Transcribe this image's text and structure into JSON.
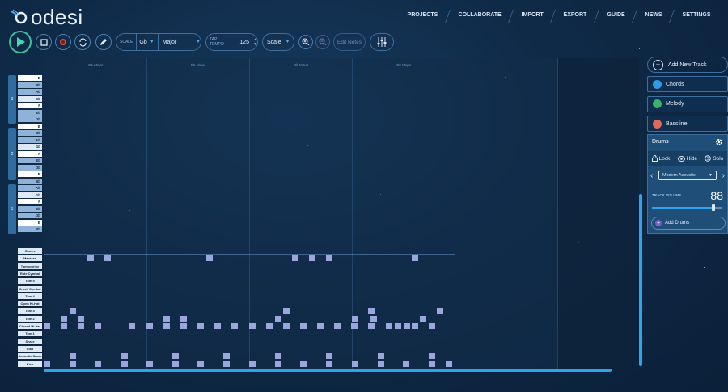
{
  "app": {
    "name": "odesi"
  },
  "nav": [
    "PROJECTS",
    "COLLABORATE",
    "IMPORT",
    "EXPORT",
    "GUIDE",
    "NEWS",
    "SETTINGS"
  ],
  "toolbar": {
    "scale_label": "SCALE",
    "key": "Gb",
    "mode": "Major",
    "tap_tempo_label": "TAP TEMPO",
    "tempo": "125",
    "scale_button": "Scale",
    "edit_notes": "Edit Notes"
  },
  "chords": [
    "Gb Major",
    "Bb Minor",
    "Db Minor",
    "Gb Major"
  ],
  "piano_octaves": [
    {
      "number": "3",
      "keys": [
        "B",
        "Bb",
        "Ab",
        "Gb",
        "F",
        "Eb",
        "Db",
        "B"
      ]
    },
    {
      "number": "2",
      "keys": [
        "Bb",
        "Ab",
        "Gb",
        "F",
        "Eb",
        "Db",
        "B"
      ]
    },
    {
      "number": "1",
      "keys": [
        "Bb",
        "Ab",
        "Gb",
        "F",
        "Eb",
        "Db",
        "B",
        "Bb"
      ]
    }
  ],
  "drum_kit": [
    "Claves",
    "Maracas",
    "Tambourine",
    "Ride Cymbal",
    "Tom 5",
    "Crash Cymbal",
    "Tom 4",
    "Open Hi-Hat",
    "Tom 3",
    "Tom 2",
    "Closed Hi-Hat",
    "Tom 1",
    "Snare",
    "Clap",
    "Acoustic Snare",
    "Kick"
  ],
  "tracks": {
    "add_label": "Add New Track",
    "items": [
      {
        "name": "Chords",
        "color": "#2d9be8"
      },
      {
        "name": "Melody",
        "color": "#3ab06a"
      },
      {
        "name": "Bassline",
        "color": "#e06a5a"
      }
    ]
  },
  "drums_panel": {
    "title": "Drums",
    "lock": "Lock",
    "hide": "Hide",
    "solo": "Solo",
    "kit": "Modern Acoustic",
    "volume_label": "TRACK VOLUME",
    "volume": "88",
    "add_drums": "Add Drums"
  },
  "colors": {
    "accent": "#2fa3ee",
    "note": "#9aa6dc",
    "panel": "#1f4e78"
  }
}
